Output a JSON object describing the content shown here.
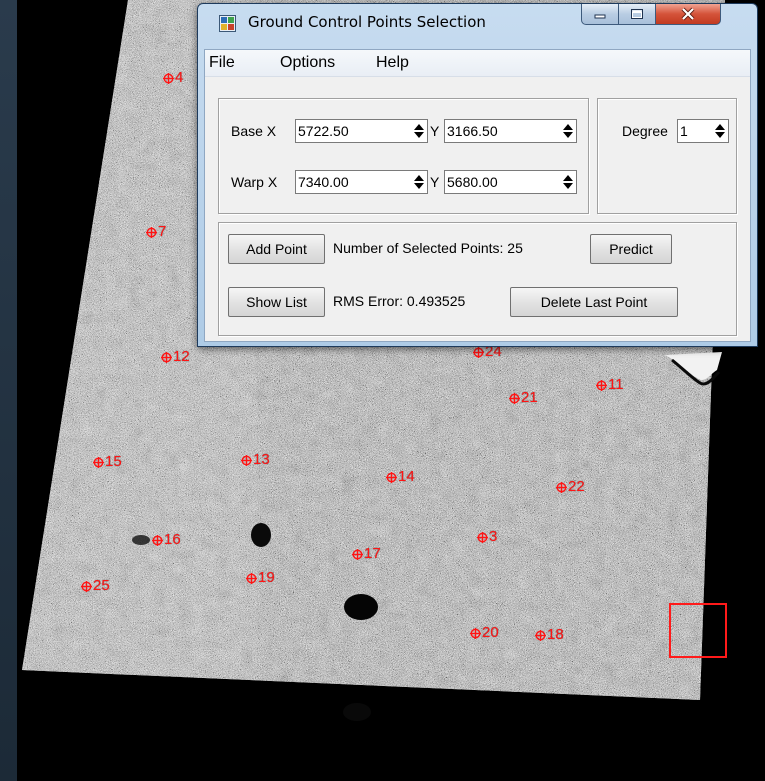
{
  "window": {
    "title": "Ground Control Points Selection",
    "app_icon": "ground-control-app-icon",
    "controls": [
      "minimize-icon",
      "maximize-icon",
      "close-icon"
    ]
  },
  "menu": {
    "file": "File",
    "options": "Options",
    "help": "Help"
  },
  "coords": {
    "base_label": "Base X",
    "base_x": "5722.50",
    "base_y_label": "Y",
    "base_y": "3166.50",
    "warp_label": "Warp X",
    "warp_x": "7340.00",
    "warp_y_label": "Y",
    "warp_y": "5680.00"
  },
  "degree": {
    "label": "Degree",
    "value": "1"
  },
  "actions": {
    "add_point": "Add Point",
    "selected_points_text": "Number of Selected Points: 25",
    "predict": "Predict",
    "show_list": "Show List",
    "rms_text": "RMS Error: 0.493525",
    "delete_last": "Delete Last Point"
  },
  "image": {
    "marker_color": "#ff1414",
    "marker_icon": "crosshair-circle-icon",
    "zoom_box_color": "#ff1a1a",
    "gcp_labels": [
      "4",
      "7",
      "12",
      "24",
      "21",
      "11",
      "15",
      "13",
      "14",
      "22",
      "16",
      "3",
      "17",
      "19",
      "25",
      "20",
      "18"
    ]
  }
}
